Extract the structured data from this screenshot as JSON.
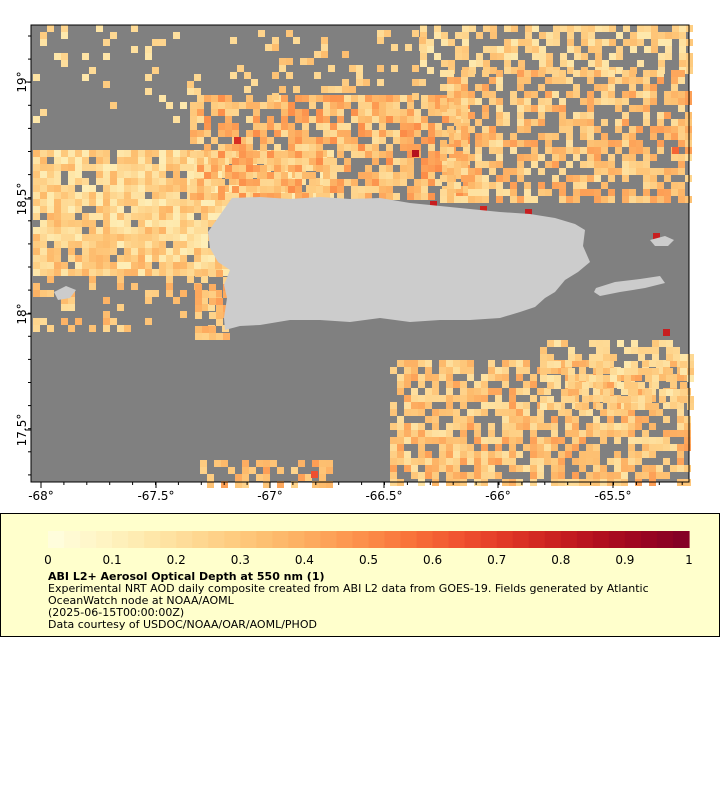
{
  "map": {
    "x_ticks": [
      "-68°",
      "-67.5°",
      "-67°",
      "-66.5°",
      "-66°",
      "-65.5°"
    ],
    "y_ticks": [
      "19°",
      "18.5°",
      "18°",
      "17.5°"
    ],
    "extent": {
      "lon": [
        -68.05,
        -65.2
      ],
      "lat": [
        17.2,
        19.25
      ]
    },
    "colors": {
      "no_data": "#808080",
      "land": "#cccccc",
      "frame": "#000000"
    }
  },
  "colorbar": {
    "labels": [
      "0",
      "0.1",
      "0.2",
      "0.3",
      "0.4",
      "0.5",
      "0.6",
      "0.7",
      "0.8",
      "0.9",
      "1"
    ],
    "range": [
      0,
      1
    ],
    "colors": [
      "#ffffe0",
      "#fff6c8",
      "#feebb0",
      "#fedc98",
      "#fecc80",
      "#fdbb6c",
      "#fda55a",
      "#fc8c48",
      "#f87038",
      "#f05230",
      "#e13826",
      "#cc2220",
      "#b3101e",
      "#9a0520",
      "#800026"
    ]
  },
  "legend": {
    "title": "ABI L2+ Aerosol Optical Depth at 550 nm (1)",
    "description": "Experimental NRT AOD daily composite created from ABI L2 data from GOES-19. Fields generated by Atlantic OceanWatch node at NOAA/AOML",
    "date": "(2025-06-15T00:00:00Z)",
    "credit": "Data courtesy of USDOC/NOAA/OAR/AOML/PHOD"
  }
}
